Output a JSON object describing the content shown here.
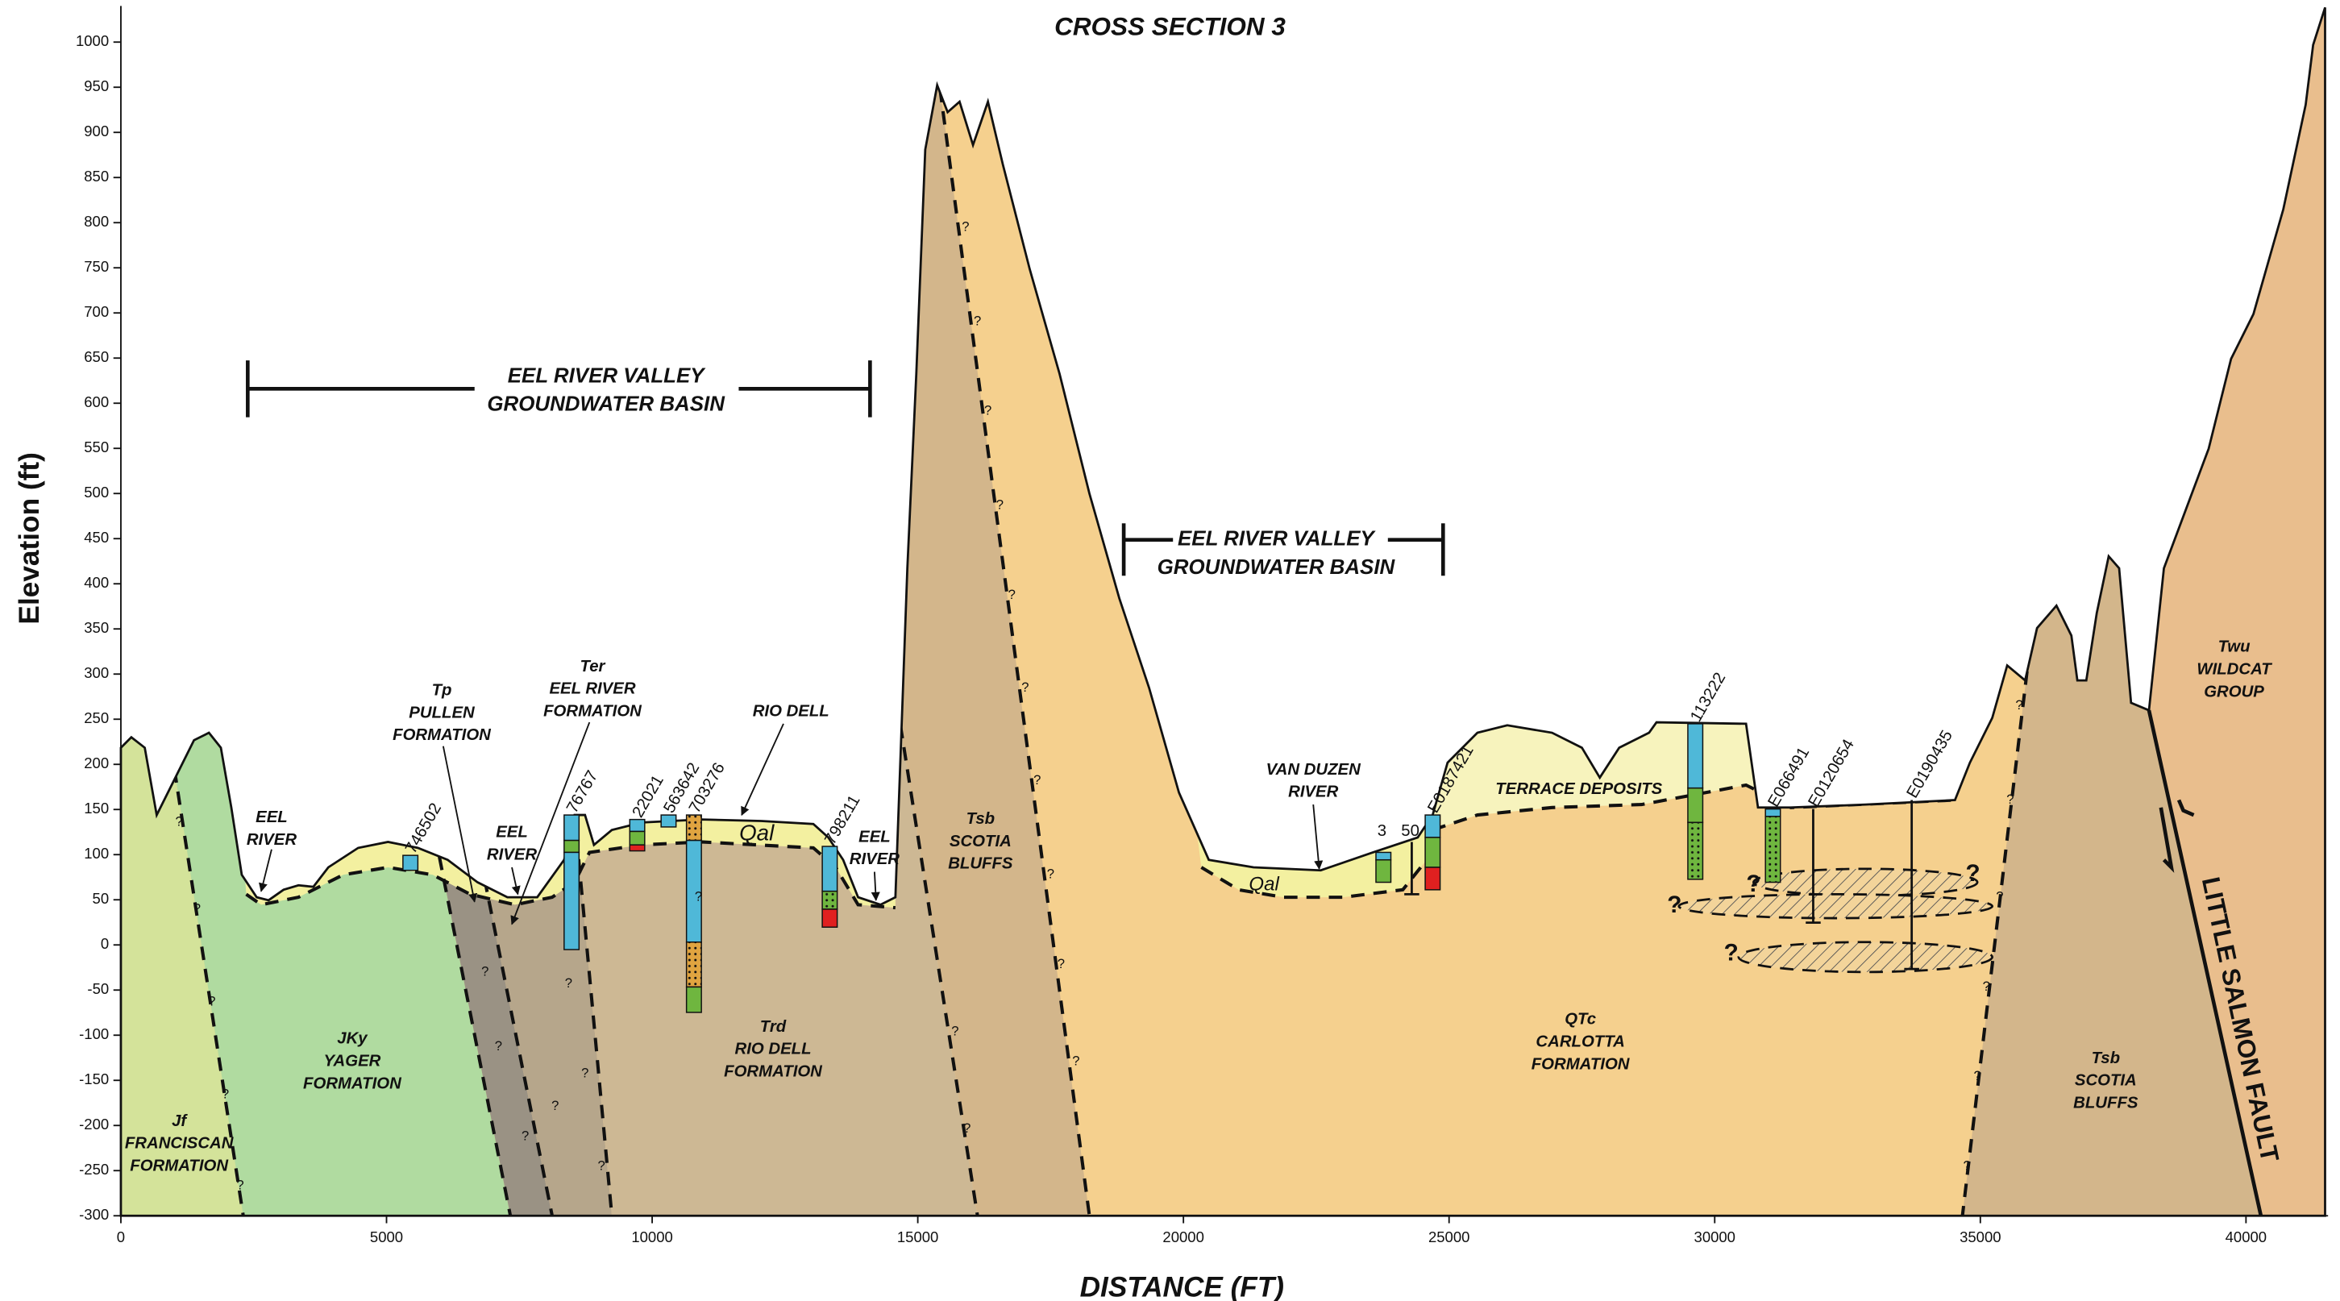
{
  "title": "CROSS SECTION 3",
  "x_axis": {
    "label": "DISTANCE (FT)",
    "lim": [
      0,
      41500
    ],
    "ticks": [
      0,
      5000,
      10000,
      15000,
      20000,
      25000,
      30000,
      35000,
      40000
    ]
  },
  "y_axis": {
    "label": "Elevation (ft)",
    "lim": [
      -300,
      1040
    ],
    "ticks": [
      -300,
      -250,
      -200,
      -150,
      -100,
      -50,
      0,
      50,
      100,
      150,
      200,
      250,
      300,
      350,
      400,
      450,
      500,
      550,
      600,
      650,
      700,
      750,
      800,
      850,
      900,
      950,
      1000
    ]
  },
  "basins": [
    {
      "lines": [
        "EEL RIVER VALLEY",
        "GROUNDWATER BASIN"
      ]
    },
    {
      "lines": [
        "EEL RIVER VALLEY",
        "GROUNDWATER BASIN"
      ]
    }
  ],
  "labels": [
    {
      "lines": [
        "EEL",
        "RIVER"
      ]
    },
    {
      "lines": [
        "Tp",
        "PULLEN",
        "FORMATION"
      ]
    },
    {
      "lines": [
        "Ter",
        "EEL RIVER",
        "FORMATION"
      ]
    },
    {
      "lines": [
        "EEL",
        "RIVER"
      ]
    },
    {
      "lines": [
        "RIO DELL"
      ]
    },
    {
      "lines": [
        "Qal"
      ]
    },
    {
      "lines": [
        "EEL",
        "RIVER"
      ]
    },
    {
      "lines": [
        "Tsb",
        "SCOTIA",
        "BLUFFS"
      ]
    },
    {
      "lines": [
        "VAN DUZEN",
        "RIVER"
      ]
    },
    {
      "lines": [
        "Qal"
      ]
    },
    {
      "lines": [
        "TERRACE DEPOSITS"
      ]
    },
    {
      "lines": [
        "Jf",
        "FRANCISCAN",
        "FORMATION"
      ]
    },
    {
      "lines": [
        "JKy",
        "YAGER",
        "FORMATION"
      ]
    },
    {
      "lines": [
        "Trd",
        "RIO DELL",
        "FORMATION"
      ]
    },
    {
      "lines": [
        "QTc",
        "CARLOTTA",
        "FORMATION"
      ]
    },
    {
      "lines": [
        "Tsb",
        "SCOTIA",
        "BLUFFS"
      ]
    },
    {
      "lines": [
        "Twu",
        "WILDCAT",
        "GROUP"
      ]
    }
  ],
  "fault": "LITTLE SALMON FAULT",
  "wells": [
    "746502",
    "76767",
    "22021",
    "563642",
    "703276",
    "798211",
    "3",
    "50",
    "E0187421",
    "113222",
    "E066491",
    "E0120654",
    "E0190435"
  ],
  "uncertain_mark": "?"
}
